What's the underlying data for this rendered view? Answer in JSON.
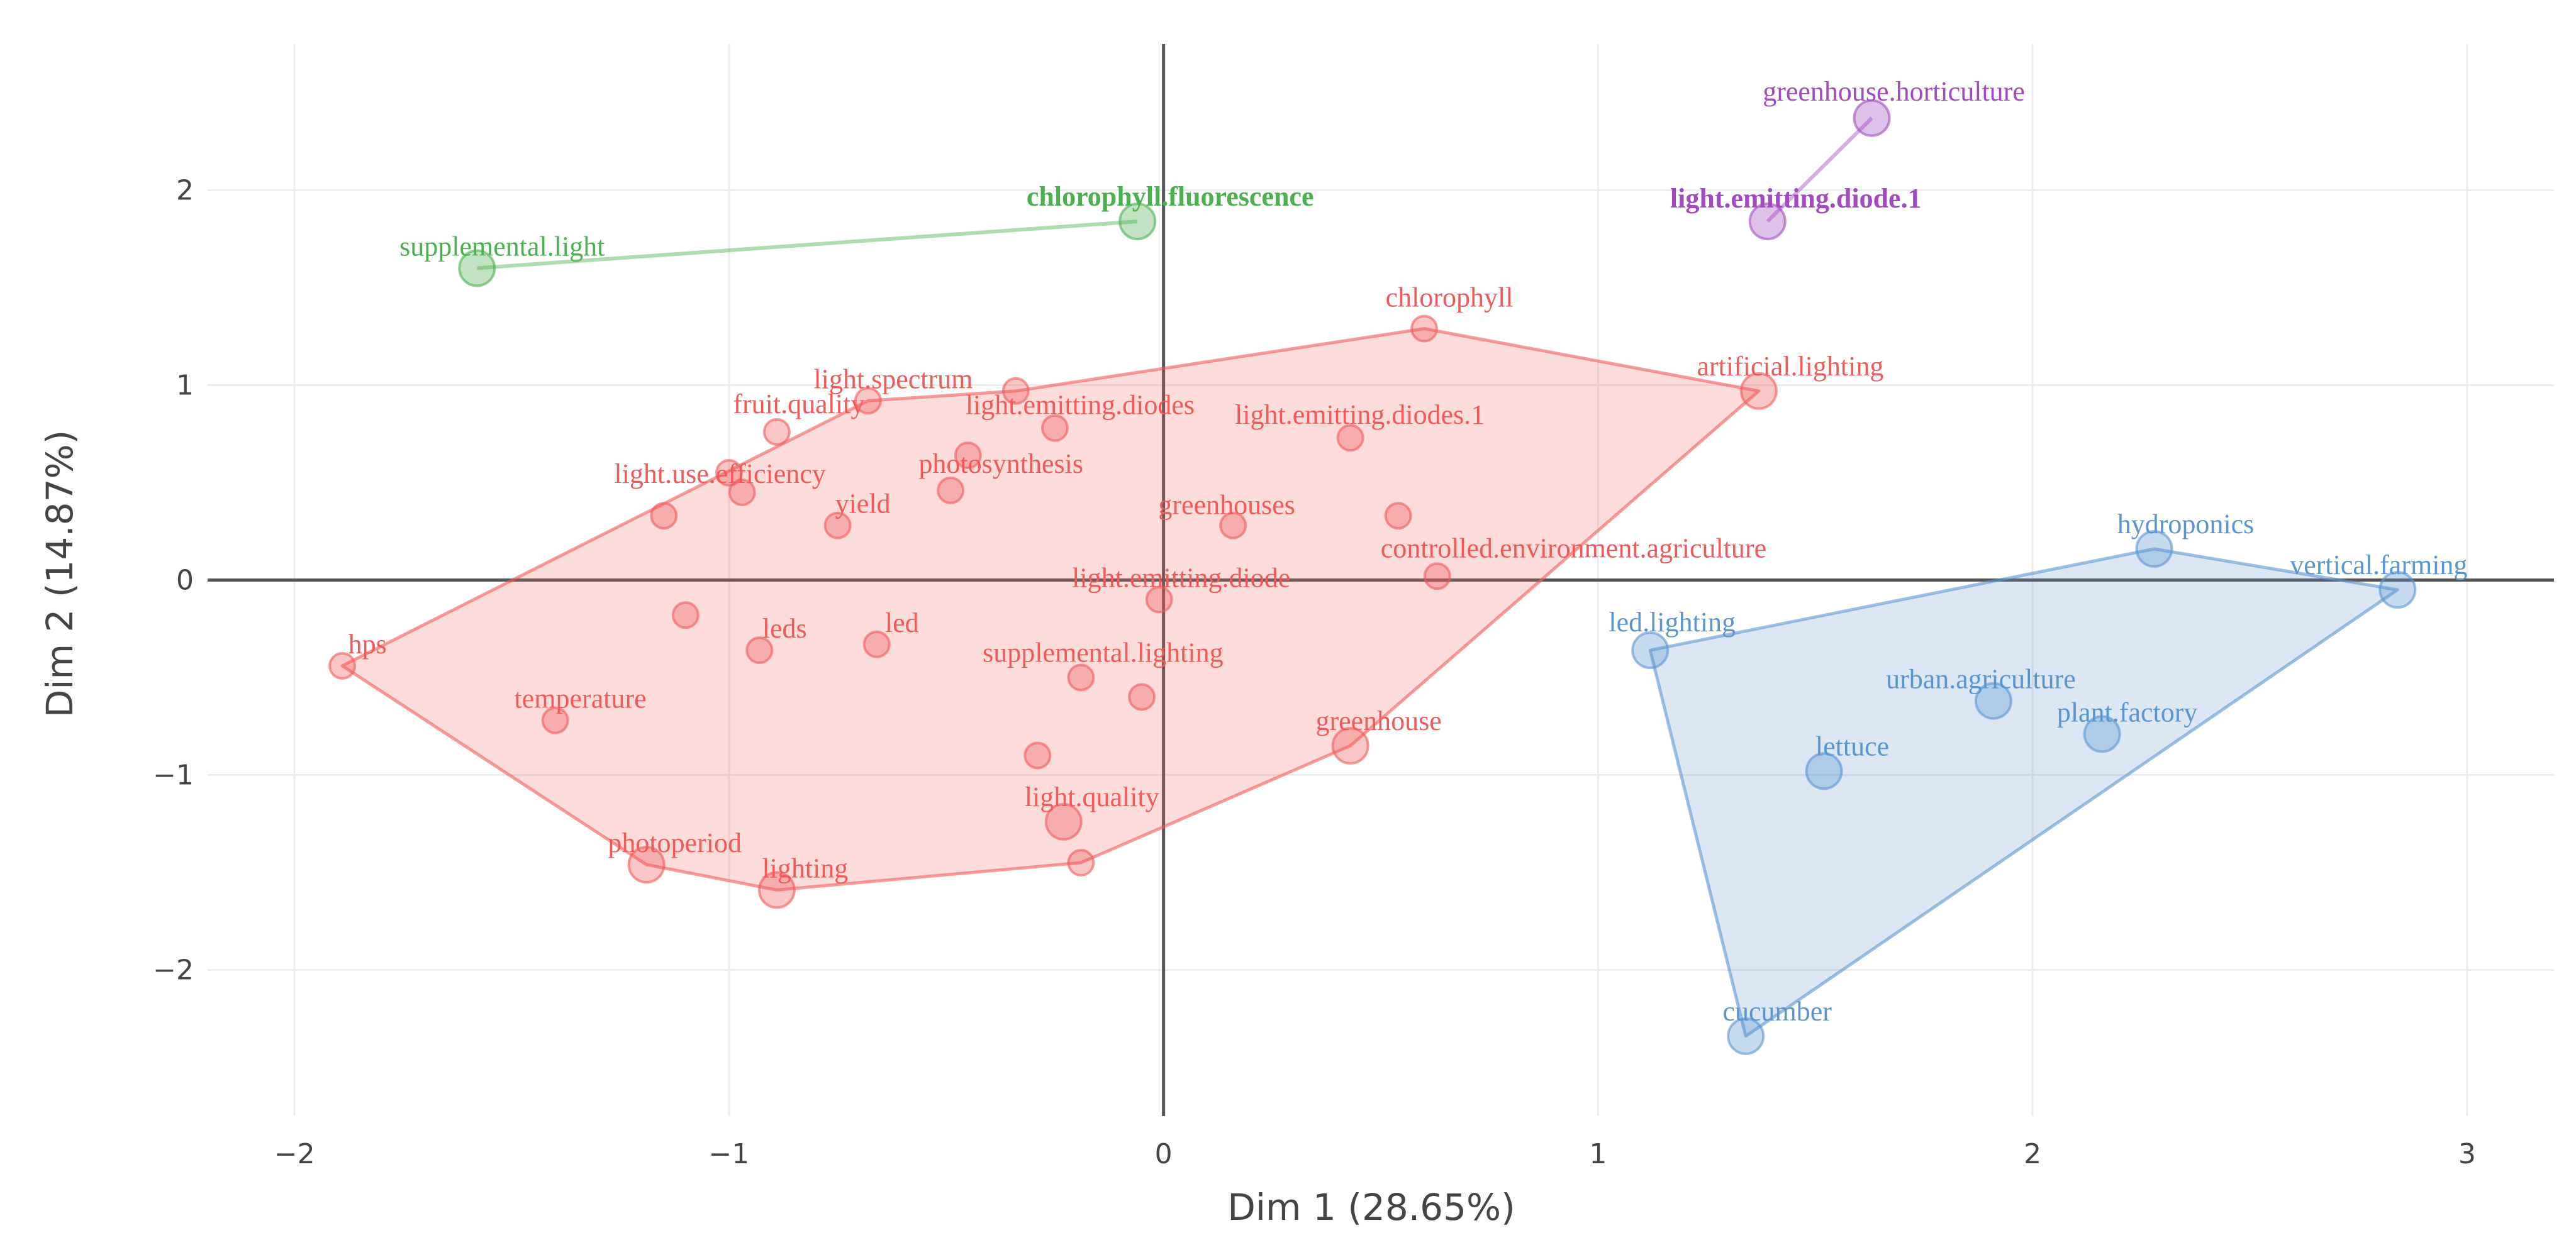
{
  "chart_data": {
    "type": "scatter",
    "title": "",
    "xlabel": "Dim 1 (28.65%)",
    "ylabel": "Dim 2 (14.87%)",
    "xlim": [
      -2.2,
      3.2
    ],
    "ylim": [
      -2.75,
      2.75
    ],
    "xticks": [
      -2,
      -1,
      0,
      1,
      2,
      3
    ],
    "yticks": [
      -2,
      -1,
      0,
      1,
      2
    ],
    "grid": true,
    "zero_lines": true,
    "series": [
      {
        "name": "cluster-red",
        "color": "#f05a5a",
        "points": [
          {
            "label": "chlorophyll",
            "x": 0.6,
            "y": 1.29,
            "size": "small"
          },
          {
            "label": "artificial.lighting",
            "x": 1.37,
            "y": 0.97,
            "size": "large"
          },
          {
            "label": "light.spectrum",
            "x": -0.68,
            "y": 0.92,
            "size": "small"
          },
          {
            "label": "",
            "x": -0.34,
            "y": 0.97,
            "size": "small"
          },
          {
            "label": "light.emitting.diodes",
            "x": -0.25,
            "y": 0.78,
            "size": "small"
          },
          {
            "label": "fruit.quality",
            "x": -0.89,
            "y": 0.76,
            "size": "small"
          },
          {
            "label": "light.emitting.diodes.1",
            "x": 0.43,
            "y": 0.73,
            "size": "small"
          },
          {
            "label": "",
            "x": -0.45,
            "y": 0.64,
            "size": "small"
          },
          {
            "label": "photosynthesis",
            "x": -0.49,
            "y": 0.46,
            "size": "small"
          },
          {
            "label": "",
            "x": -1.0,
            "y": 0.55,
            "size": "small"
          },
          {
            "label": "light.use.efficiency",
            "x": -0.97,
            "y": 0.45,
            "size": "small"
          },
          {
            "label": "",
            "x": -1.15,
            "y": 0.33,
            "size": "small"
          },
          {
            "label": "yield",
            "x": -0.75,
            "y": 0.28,
            "size": "small"
          },
          {
            "label": "greenhouses",
            "x": 0.16,
            "y": 0.28,
            "size": "small"
          },
          {
            "label": "",
            "x": 0.54,
            "y": 0.33,
            "size": "small"
          },
          {
            "label": "controlled.environment.agriculture",
            "x": 0.63,
            "y": 0.02,
            "size": "small"
          },
          {
            "label": "light.emitting.diode",
            "x": -0.01,
            "y": -0.1,
            "size": "small"
          },
          {
            "label": "hps",
            "x": -1.89,
            "y": -0.44,
            "size": "small"
          },
          {
            "label": "",
            "x": -1.1,
            "y": -0.18,
            "size": "small"
          },
          {
            "label": "leds",
            "x": -0.93,
            "y": -0.36,
            "size": "small"
          },
          {
            "label": "led",
            "x": -0.66,
            "y": -0.33,
            "size": "small"
          },
          {
            "label": "supplemental.lighting",
            "x": -0.19,
            "y": -0.5,
            "size": "small"
          },
          {
            "label": "",
            "x": -0.05,
            "y": -0.6,
            "size": "small"
          },
          {
            "label": "temperature",
            "x": -1.4,
            "y": -0.72,
            "size": "small"
          },
          {
            "label": "greenhouse",
            "x": 0.43,
            "y": -0.85,
            "size": "large"
          },
          {
            "label": "",
            "x": -0.29,
            "y": -0.9,
            "size": "small"
          },
          {
            "label": "light.quality",
            "x": -0.23,
            "y": -1.24,
            "size": "large"
          },
          {
            "label": "",
            "x": -0.19,
            "y": -1.45,
            "size": "small"
          },
          {
            "label": "photoperiod",
            "x": -1.19,
            "y": -1.46,
            "size": "large"
          },
          {
            "label": "lighting",
            "x": -0.89,
            "y": -1.59,
            "size": "large"
          }
        ],
        "hull": [
          [
            -1.89,
            -0.44
          ],
          [
            -1.19,
            -1.46
          ],
          [
            -0.89,
            -1.59
          ],
          [
            -0.19,
            -1.45
          ],
          [
            0.43,
            -0.85
          ],
          [
            1.37,
            0.97
          ],
          [
            0.6,
            1.29
          ],
          [
            -0.34,
            0.97
          ],
          [
            -0.68,
            0.92
          ]
        ]
      },
      {
        "name": "cluster-green",
        "color": "#4caf50",
        "points": [
          {
            "label": "supplemental.light",
            "x": -1.58,
            "y": 1.6,
            "size": "large"
          },
          {
            "label": "chlorophyll.fluorescence",
            "x": -0.06,
            "y": 1.84,
            "size": "large"
          }
        ],
        "hull": [
          [
            -1.58,
            1.6
          ],
          [
            -0.06,
            1.84
          ]
        ]
      },
      {
        "name": "cluster-purple",
        "color": "#a04cc0",
        "points": [
          {
            "label": "greenhouse.horticulture",
            "x": 1.63,
            "y": 2.37,
            "size": "large"
          },
          {
            "label": "light.emitting.diode.1",
            "x": 1.39,
            "y": 1.84,
            "size": "large"
          }
        ],
        "hull": [
          [
            1.63,
            2.37
          ],
          [
            1.39,
            1.84
          ]
        ]
      },
      {
        "name": "cluster-blue",
        "color": "#5b95cf",
        "points": [
          {
            "label": "hydroponics",
            "x": 2.28,
            "y": 0.16,
            "size": "large"
          },
          {
            "label": "vertical.farming",
            "x": 2.84,
            "y": -0.05,
            "size": "large"
          },
          {
            "label": "led.lighting",
            "x": 1.12,
            "y": -0.36,
            "size": "large"
          },
          {
            "label": "urban.agriculture",
            "x": 1.91,
            "y": -0.62,
            "size": "large"
          },
          {
            "label": "plant.factory",
            "x": 2.16,
            "y": -0.79,
            "size": "large"
          },
          {
            "label": "lettuce",
            "x": 1.52,
            "y": -0.98,
            "size": "large"
          },
          {
            "label": "cucumber",
            "x": 1.34,
            "y": -2.34,
            "size": "large"
          }
        ],
        "hull": [
          [
            1.12,
            -0.36
          ],
          [
            1.34,
            -2.34
          ],
          [
            2.84,
            -0.05
          ],
          [
            2.28,
            0.16
          ]
        ]
      }
    ]
  }
}
